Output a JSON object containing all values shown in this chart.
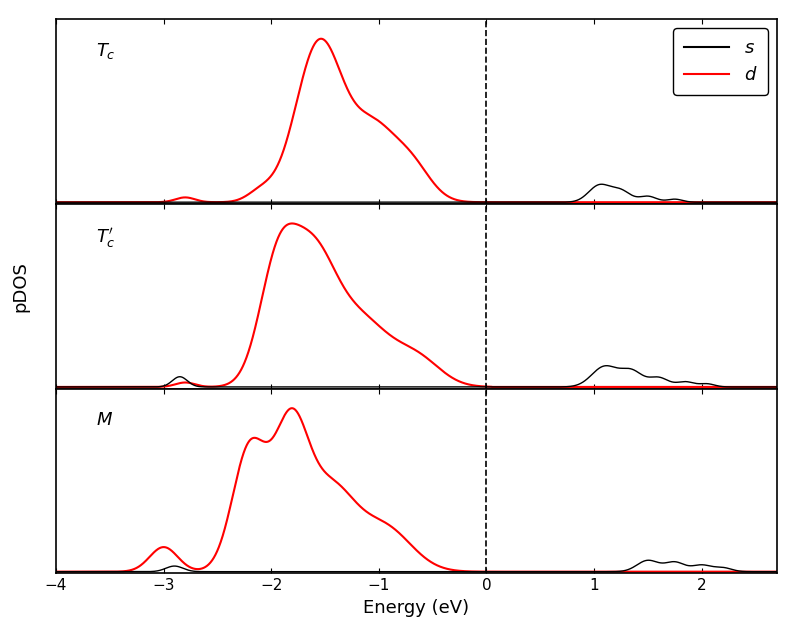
{
  "title": "",
  "xlabel": "Energy (eV)",
  "ylabel": "pDOS",
  "xlim": [
    -4,
    2.7
  ],
  "panel_labels": [
    "$T_c$",
    "$T_c'$",
    "$M$"
  ],
  "legend_labels": [
    "$s$",
    "$d$"
  ],
  "legend_colors": [
    "black",
    "red"
  ],
  "vline_x": 0,
  "background_color": "#ffffff",
  "dashed_line_color": "black",
  "xticks": [
    -4,
    -3,
    -2,
    -1,
    0,
    1,
    2
  ],
  "s_linewidth": 1.0,
  "d_linewidth": 1.5,
  "label_fontsize": 13,
  "tick_fontsize": 11,
  "legend_fontsize": 13
}
